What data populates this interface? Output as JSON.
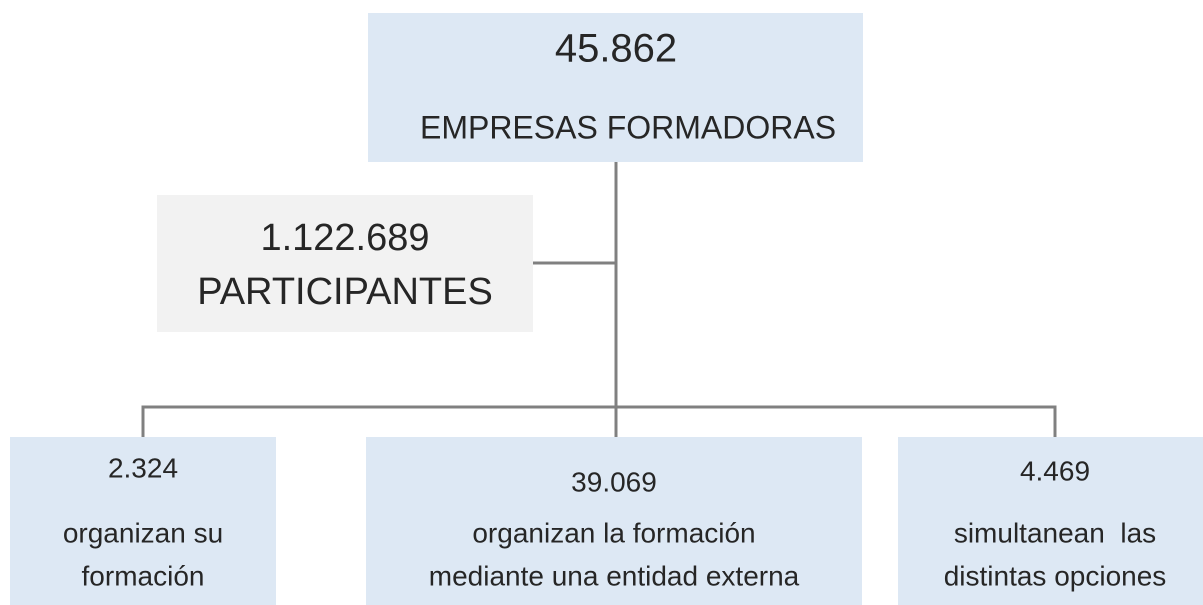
{
  "nodes": [
    {
      "value": "45.862",
      "lines": [
        "EMPRESAS FORMADORAS"
      ]
    },
    {
      "value": "1.122.689",
      "lines": [
        "PARTICIPANTES"
      ]
    },
    {
      "value": "2.324",
      "lines": [
        "organizan su",
        "formación"
      ]
    },
    {
      "value": "39.069",
      "lines": [
        "organizan la formación",
        "mediante una entidad externa"
      ]
    },
    {
      "value": "4.469",
      "lines": [
        "simultanean  las",
        "distintas opciones"
      ]
    }
  ]
}
